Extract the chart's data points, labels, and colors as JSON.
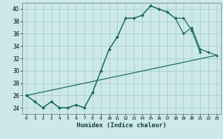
{
  "title": "",
  "xlabel": "Humidex (Indice chaleur)",
  "background_color": "#cce8e8",
  "grid_color": "#aacccc",
  "line_color": "#1a6b5a",
  "xlim": [
    -0.5,
    23.5
  ],
  "ylim": [
    23,
    41
  ],
  "yticks": [
    24,
    26,
    28,
    30,
    32,
    34,
    36,
    38,
    40
  ],
  "xtick_labels": [
    "0",
    "1",
    "2",
    "3",
    "4",
    "5",
    "6",
    "7",
    "8",
    "9",
    "10",
    "11",
    "12",
    "13",
    "14",
    "15",
    "16",
    "17",
    "18",
    "19",
    "20",
    "21",
    "22",
    "23"
  ],
  "line1_x": [
    0,
    1,
    2,
    3,
    4,
    5,
    6,
    7,
    8,
    9,
    10,
    11,
    12,
    13,
    14,
    15,
    16,
    17,
    18,
    19,
    20,
    21
  ],
  "line1_y": [
    26,
    25,
    24,
    25,
    24,
    24,
    24.5,
    24,
    26.5,
    30,
    33.5,
    35.5,
    38.5,
    38.5,
    39,
    40.5,
    40,
    39.5,
    38.5,
    38.5,
    36.5,
    33
  ],
  "line2_x": [
    0,
    1,
    2,
    3,
    4,
    5,
    6,
    7,
    8,
    9,
    10,
    11,
    12,
    13,
    14,
    15,
    16,
    17,
    18,
    19,
    20,
    21,
    22,
    23
  ],
  "line2_y": [
    26,
    25,
    24,
    25,
    24,
    24,
    24.5,
    24,
    26.5,
    30,
    33.5,
    35.5,
    38.5,
    38.5,
    39,
    40.5,
    40,
    39.5,
    38.5,
    36,
    37,
    33.5,
    33,
    32.5
  ],
  "line3_x": [
    0,
    23
  ],
  "line3_y": [
    26,
    32.5
  ]
}
